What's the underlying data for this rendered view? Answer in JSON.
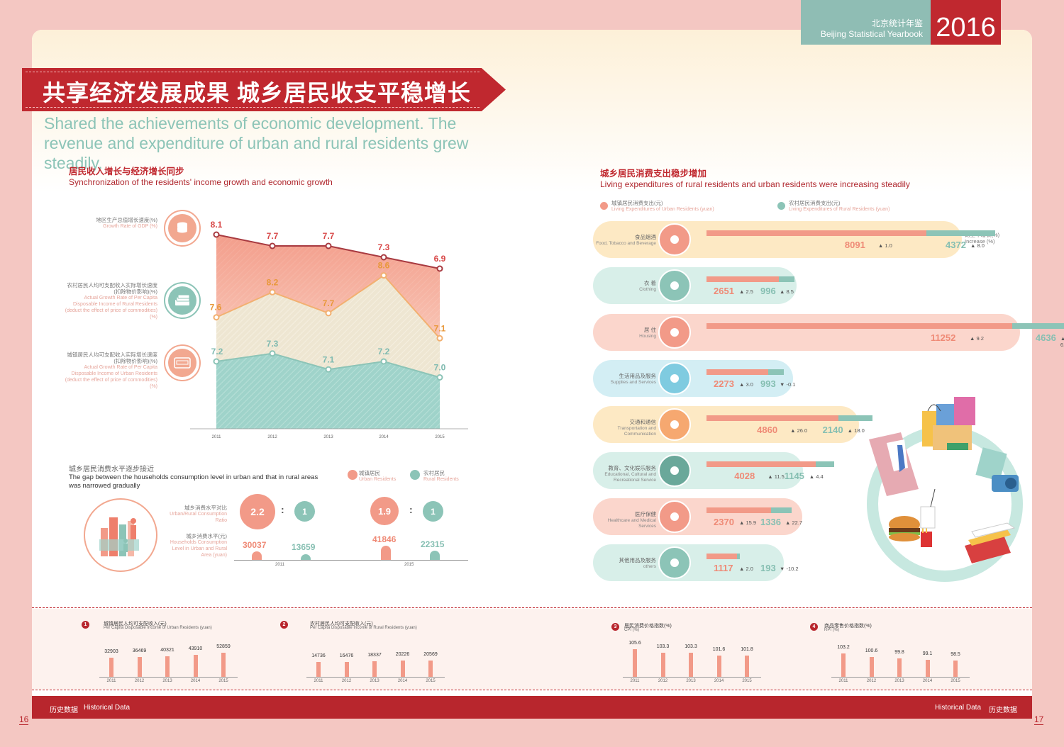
{
  "header": {
    "yearbook_cn": "北京统计年鉴",
    "yearbook_en": "Beijing Statistical Yearbook",
    "year": "2016"
  },
  "banner": {
    "title_cn": "共享经济发展成果 城乡居民收支平稳增长",
    "subtitle_en": "Shared the achievements of economic development. The revenue and expenditure of urban and rural residents grew steadily."
  },
  "left_section": {
    "title_cn": "居民收入增长与经济增长同步",
    "title_en": "Synchronization of the residents' income growth and economic growth",
    "legend": [
      {
        "cn": "地区生产总值增长速度(%)",
        "en": "Growth Rate of GDP (%)"
      },
      {
        "cn": "农村居民人均可支配收入实际增长速度(扣除物价影响)(%)",
        "en": "Actual Growth Rate of Per Capita Disposable Income of Rural Residents (deduct the effect of price of commodities) (%)"
      },
      {
        "cn": "城镇居民人均可支配收入实际增长速度(扣除物价影响)(%)",
        "en": "Actual Growth Rate of Per Capita Disposable Income of Urban Residents (deduct the effect of price of commodities) (%)"
      }
    ]
  },
  "gap_section": {
    "title_cn": "城乡居民消费水平逐步接近",
    "title_en": "The gap between the households consumption level in urban and that in rural areas was narrowed gradually",
    "legend_urban_cn": "城镇居民",
    "legend_urban_en": "Urban Residents",
    "legend_rural_cn": "农村居民",
    "legend_rural_en": "Rural Residents",
    "ratio_label_cn": "城乡消费水平对比",
    "ratio_label_en": "Urban/Rural Consumption Ratio",
    "level_label_cn": "城乡消费水平(元)",
    "level_label_en": "Households Consumption Level in Urban and Rural Area (yuan)",
    "colon": ":",
    "years": [
      "2011",
      "2015"
    ],
    "ratio_urban": [
      "2.2",
      "1.9"
    ],
    "ratio_rural": [
      "1",
      "1"
    ],
    "level_urban": [
      "30037",
      "41846"
    ],
    "level_rural": [
      "13659",
      "22315"
    ]
  },
  "right_section": {
    "title_cn": "城乡居民消费支出稳步增加",
    "title_en": "Living expenditures of rural residents and urban residents were increasing steadily",
    "legend_urban_cn": "城镇居民消费支出(元)",
    "legend_urban_en": "Living Expenditures of Urban Residents (yuan)",
    "legend_rural_cn": "农村居民消费支出(元)",
    "legend_rural_en": "Living Expenditures of Rural Residents (yuan)",
    "increase_cn": "比上年增长(%)",
    "increase_en": "Increase (%)",
    "items": [
      {
        "cn": "食品烟酒",
        "en": "Food, Tobacco and Beverage",
        "urban": "8091",
        "urban_inc": "1.0",
        "urban_dir": "▲",
        "rural": "4372",
        "rural_inc": "8.0",
        "rural_dir": "▲",
        "icon": "food-icon"
      },
      {
        "cn": "衣 着",
        "en": "Clothing",
        "urban": "2651",
        "urban_inc": "2.5",
        "urban_dir": "▲",
        "rural": "996",
        "rural_inc": "8.5",
        "rural_dir": "▲",
        "icon": "clothing-icon"
      },
      {
        "cn": "居 住",
        "en": "Housing",
        "urban": "11252",
        "urban_inc": "9.2",
        "urban_dir": "▲",
        "rural": "4636",
        "rural_inc": "6.3",
        "rural_dir": "▲",
        "icon": "house-icon"
      },
      {
        "cn": "生活用品及服务",
        "en": "Supplies and Services",
        "urban": "2273",
        "urban_inc": "3.0",
        "urban_dir": "▲",
        "rural": "993",
        "rural_inc": "-0.1",
        "rural_dir": "▼",
        "icon": "briefcase-icon"
      },
      {
        "cn": "交通和通信",
        "en": "Transportation and Communication",
        "urban": "4860",
        "urban_inc": "26.0",
        "urban_dir": "▲",
        "rural": "2140",
        "rural_inc": "18.0",
        "rural_dir": "▲",
        "icon": "car-icon"
      },
      {
        "cn": "教育、文化娱乐服务",
        "en": "Educational, Cultural and Recreational Service",
        "urban": "4028",
        "urban_inc": "11.5",
        "urban_dir": "▲",
        "rural": "1145",
        "rural_inc": "4.4",
        "rural_dir": "▲",
        "icon": "camera-icon"
      },
      {
        "cn": "医疗保健",
        "en": "Healthcare and Medical Services",
        "urban": "2370",
        "urban_inc": "15.9",
        "urban_dir": "▲",
        "rural": "1336",
        "rural_inc": "22.7",
        "rural_dir": "▲",
        "icon": "medical-icon"
      },
      {
        "cn": "其他用品及服务",
        "en": "others",
        "urban": "1117",
        "urban_inc": "2.0",
        "urban_dir": "▲",
        "rural": "193",
        "rural_inc": "-10.2",
        "rural_dir": "▼",
        "icon": "sprout-icon"
      }
    ]
  },
  "bottom": {
    "charts": [
      {
        "num": "1",
        "cn": "城镇居民人均可支配收入(元)",
        "en": "Per Capita Disposable Income of Urban Residents (yuan)"
      },
      {
        "num": "2",
        "cn": "农村居民人均可支配收入(元)",
        "en": "Per Capita Disposable Income of Rural Residents (yuan)"
      },
      {
        "num": "3",
        "cn": "居民消费价格指数(%)",
        "en": "CPI (%)"
      },
      {
        "num": "4",
        "cn": "商品零售价格指数(%)",
        "en": "RPI (%)"
      }
    ]
  },
  "footer": {
    "left_cn": "历史数据",
    "left_en": "Historical Data",
    "right_en": "Historical Data",
    "right_cn": "历史数据",
    "page_left": "16",
    "page_right": "17"
  },
  "chart_data": [
    {
      "type": "area",
      "x": [
        "2011",
        "2012",
        "2013",
        "2014",
        "2015"
      ],
      "series": [
        {
          "name": "地区生产总值增长速度(%)",
          "values": [
            8.1,
            7.7,
            7.7,
            7.3,
            6.9
          ],
          "color": "#c0282f"
        },
        {
          "name": "农村居民人均可支配收入实际增长速度(扣除物价影响)(%)",
          "values": [
            7.6,
            8.2,
            7.7,
            8.6,
            7.1
          ],
          "color": "#f2a65a"
        },
        {
          "name": "城镇居民人均可支配收入实际增长速度(扣除物价影响)(%)",
          "values": [
            7.2,
            7.3,
            7.1,
            7.2,
            7.0
          ],
          "color": "#8cc4b7"
        }
      ]
    },
    {
      "type": "bar",
      "orientation": "horizontal",
      "categories": [
        "食品烟酒",
        "衣 着",
        "居 住",
        "生活用品及服务",
        "交通和通信",
        "教育、文化娱乐服务",
        "医疗保健",
        "其他用品及服务"
      ],
      "series": [
        {
          "name": "城镇居民消费支出(元)",
          "values": [
            8091,
            2651,
            11252,
            2273,
            4860,
            4028,
            2370,
            1117
          ]
        },
        {
          "name": "农村居民消费支出(元)",
          "values": [
            4372,
            996,
            4636,
            993,
            2140,
            1145,
            1336,
            193
          ]
        }
      ]
    },
    {
      "type": "bar",
      "categories": [
        "2011",
        "2012",
        "2013",
        "2014",
        "2015"
      ],
      "values": [
        32903,
        36469,
        40321,
        43910,
        52859
      ]
    },
    {
      "type": "bar",
      "categories": [
        "2011",
        "2012",
        "2013",
        "2014",
        "2015"
      ],
      "values": [
        14736,
        16476,
        18337,
        20226,
        20569
      ]
    },
    {
      "type": "bar",
      "categories": [
        "2011",
        "2012",
        "2013",
        "2014",
        "2015"
      ],
      "values": [
        105.6,
        103.3,
        103.3,
        101.6,
        101.8
      ]
    },
    {
      "type": "bar",
      "categories": [
        "2011",
        "2012",
        "2013",
        "2014",
        "2015"
      ],
      "values": [
        103.2,
        100.6,
        99.8,
        99.1,
        98.5
      ]
    }
  ]
}
